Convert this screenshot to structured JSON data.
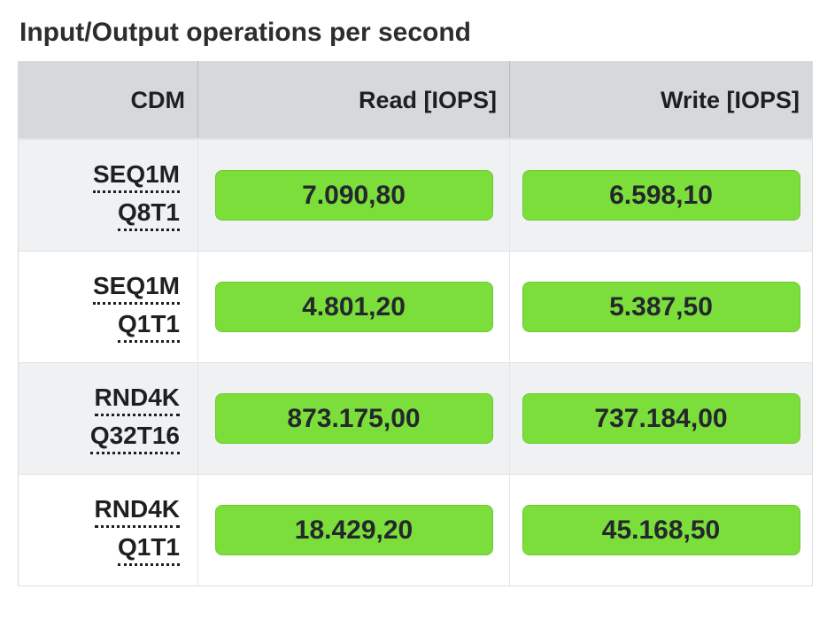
{
  "title": "Input/Output operations per second",
  "colors": {
    "green": "#7cde3b",
    "header_bg": "#d6d8da",
    "row_alt_bg": "#f0f1f2"
  },
  "table": {
    "headers": [
      "CDM",
      "Read [IOPS]",
      "Write [IOPS]"
    ],
    "rows": [
      {
        "label_line1": "SEQ1M",
        "label_line2": "Q8T1",
        "read": "7.090,80",
        "write": "6.598,10"
      },
      {
        "label_line1": "SEQ1M",
        "label_line2": "Q1T1",
        "read": "4.801,20",
        "write": "5.387,50"
      },
      {
        "label_line1": "RND4K",
        "label_line2": "Q32T16",
        "read": "873.175,00",
        "write": "737.184,00"
      },
      {
        "label_line1": "RND4K",
        "label_line2": "Q1T1",
        "read": "18.429,20",
        "write": "45.168,50"
      }
    ]
  },
  "chart_data": {
    "type": "table",
    "title": "Input/Output operations per second",
    "columns": [
      "CDM",
      "Read [IOPS]",
      "Write [IOPS]"
    ],
    "rows": [
      [
        "SEQ1M Q8T1",
        "7.090,80",
        "6.598,10"
      ],
      [
        "SEQ1M Q1T1",
        "4.801,20",
        "5.387,50"
      ],
      [
        "RND4K Q32T16",
        "873.175,00",
        "737.184,00"
      ],
      [
        "RND4K Q1T1",
        "18.429,20",
        "45.168,50"
      ]
    ],
    "numeric_values": {
      "read_iops": [
        7090.8,
        4801.2,
        873175.0,
        18429.2
      ],
      "write_iops": [
        6598.1,
        5387.5,
        737184.0,
        45168.5
      ]
    },
    "layout_hints": {
      "value_highlight": "green rounded pill per value",
      "row_striping": "odd rows light gray, even rows white",
      "number_format": "dot thousands separator, comma decimal"
    }
  }
}
